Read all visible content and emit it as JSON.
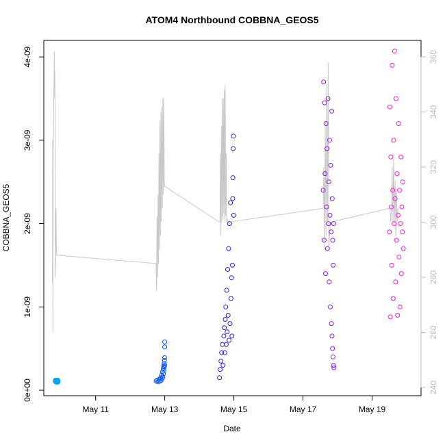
{
  "chart_data": {
    "type": "scatter",
    "title": "ATOM4 Northbound COBBNA_GEOS5",
    "xlabel": "Date",
    "ylabel": "COBBNA_GEOS5",
    "x_ticks": [
      "May 11",
      "May 13",
      "May 15",
      "May 17",
      "May 19"
    ],
    "y_ticks": [
      "0e+00",
      "1e-09",
      "2e-09",
      "3e-09",
      "4e-09"
    ],
    "y_right_ticks": [
      "240",
      "260",
      "280",
      "300",
      "320",
      "340",
      "360"
    ],
    "xlim": [
      "2016-05-09 12:00",
      "2016-05-20 10:00"
    ],
    "ylim": [
      0,
      4.1e-09
    ],
    "y_right_lim": [
      239,
      363
    ],
    "grid": false,
    "legend": "none",
    "colors": {
      "line": "#c8c8c8",
      "axis": "#000000",
      "right_axis": "#bdbdbd",
      "flight_1": "#0ea5f0",
      "flight_2": "#0050ff",
      "flight_3": "#2a1fe6",
      "flight_4": "#8a1ae8",
      "flight_5": "#ff18d8"
    },
    "series": [
      {
        "marker": "circle-open",
        "color": "#0ea5f0",
        "x": [
          "2016-05-09 20:00",
          "2016-05-09 20:06",
          "2016-05-09 20:11",
          "2016-05-09 20:17",
          "2016-05-09 20:22",
          "2016-05-09 20:28",
          "2016-05-09 20:34",
          "2016-05-09 20:39",
          "2016-05-09 20:45",
          "2016-05-09 20:50",
          "2016-05-09 20:56",
          "2016-05-09 21:02",
          "2016-05-09 21:07",
          "2016-05-09 21:13",
          "2016-05-09 21:18",
          "2016-05-09 21:24",
          "2016-05-09 21:30",
          "2016-05-09 21:35",
          "2016-05-09 21:41",
          "2016-05-09 21:46",
          "2016-05-09 21:52",
          "2016-05-09 21:58"
        ],
        "y": [
          1.1e-10,
          1.2e-10,
          1e-10,
          1.15e-10,
          1.05e-10,
          1.1e-10,
          1.2e-10,
          1e-10,
          9.5e-11,
          1.1e-10,
          1.15e-10,
          1.05e-10,
          1.2e-10,
          1.1e-10,
          1e-10,
          1.15e-10,
          9.5e-11,
          1.1e-10,
          1.2e-10,
          1.05e-10,
          1.1e-10,
          1e-10
        ]
      },
      {
        "marker": "circle-open",
        "color": "#0050ff",
        "x": [
          "2016-05-12 18:00",
          "2016-05-12 18:40",
          "2016-05-12 19:20",
          "2016-05-12 20:00",
          "2016-05-12 20:40",
          "2016-05-12 21:10",
          "2016-05-12 21:30",
          "2016-05-12 21:50",
          "2016-05-12 22:10",
          "2016-05-12 22:25",
          "2016-05-12 22:40",
          "2016-05-12 22:55",
          "2016-05-12 23:05",
          "2016-05-12 23:15",
          "2016-05-12 23:25",
          "2016-05-12 23:35",
          "2016-05-12 23:42",
          "2016-05-12 23:48",
          "2016-05-12 23:52",
          "2016-05-12 23:56",
          "2016-05-12 23:58",
          "2016-05-12 23:59"
        ],
        "y": [
          1.1e-10,
          1.2e-10,
          1e-10,
          1.3e-10,
          1.1e-10,
          1.5e-10,
          1.2e-10,
          1.8e-10,
          1.4e-10,
          2.2e-10,
          1.6e-10,
          2.6e-10,
          2e-10,
          2.9e-10,
          2.4e-10,
          3.2e-10,
          2.8e-10,
          3.6e-10,
          3e-10,
          3.9e-10,
          5.2e-10,
          5.8e-10
        ]
      },
      {
        "marker": "circle-open",
        "color": "#2a1fe6",
        "x": [
          "2016-05-14 14:00",
          "2016-05-14 14:30",
          "2016-05-14 15:00",
          "2016-05-14 15:30",
          "2016-05-14 16:00",
          "2016-05-14 16:30",
          "2016-05-14 17:00",
          "2016-05-14 17:20",
          "2016-05-14 17:40",
          "2016-05-14 18:00",
          "2016-05-14 18:20",
          "2016-05-14 18:40",
          "2016-05-14 19:00",
          "2016-05-14 19:20",
          "2016-05-14 19:40",
          "2016-05-14 20:00",
          "2016-05-14 20:20",
          "2016-05-14 20:40",
          "2016-05-14 21:00",
          "2016-05-14 21:20",
          "2016-05-14 21:40",
          "2016-05-14 22:00",
          "2016-05-14 22:20",
          "2016-05-14 22:40",
          "2016-05-14 23:00",
          "2016-05-14 23:10",
          "2016-05-14 23:20",
          "2016-05-14 23:30",
          "2016-05-14 23:40",
          "2016-05-14 23:50"
        ],
        "y": [
          1.5e-10,
          2.5e-10,
          3.5e-10,
          4.5e-10,
          5.5e-10,
          3e-10,
          6.5e-10,
          7.5e-10,
          4.5e-10,
          8.5e-10,
          1e-09,
          5.5e-10,
          1.2e-09,
          7e-10,
          1.45e-09,
          9e-10,
          1.7e-09,
          6e-10,
          2e-09,
          8e-10,
          2.25e-09,
          1.1e-09,
          1.35e-09,
          6.5e-10,
          1.5e-09,
          2.3e-09,
          2.55e-09,
          2.9e-09,
          3.05e-09,
          2.1e-09
        ]
      },
      {
        "marker": "circle-open",
        "color": "#8a1ae8",
        "x": [
          "2016-05-17 14:00",
          "2016-05-17 14:20",
          "2016-05-17 14:40",
          "2016-05-17 15:00",
          "2016-05-17 15:20",
          "2016-05-17 15:40",
          "2016-05-17 16:00",
          "2016-05-17 16:20",
          "2016-05-17 16:40",
          "2016-05-17 17:00",
          "2016-05-17 17:20",
          "2016-05-17 17:40",
          "2016-05-17 18:00",
          "2016-05-17 18:15",
          "2016-05-17 18:30",
          "2016-05-17 18:45",
          "2016-05-17 19:00",
          "2016-05-17 19:15",
          "2016-05-17 19:30",
          "2016-05-17 19:45",
          "2016-05-17 20:00",
          "2016-05-17 20:10",
          "2016-05-17 20:20",
          "2016-05-17 20:30",
          "2016-05-17 20:40",
          "2016-05-17 20:50",
          "2016-05-17 21:00",
          "2016-05-17 21:10",
          "2016-05-17 21:20",
          "2016-05-17 21:30"
        ],
        "y": [
          2.4e-09,
          3.7e-09,
          1.8e-09,
          3.45e-09,
          2.6e-09,
          1.4e-09,
          3.2e-09,
          2.2e-09,
          2.9e-09,
          1.7e-09,
          3.5e-09,
          2e-09,
          2.5e-09,
          1.3e-09,
          3e-09,
          2.1e-09,
          1e-09,
          2.7e-09,
          1.9e-09,
          8e-10,
          3.35e-09,
          6.5e-10,
          2.3e-09,
          5e-10,
          1.8e-09,
          4e-10,
          1.5e-09,
          3e-10,
          2e-09,
          2.7e-10
        ]
      },
      {
        "marker": "circle-open",
        "color": "#ff18d8",
        "x": [
          "2016-05-19 12:00",
          "2016-05-19 12:20",
          "2016-05-19 12:40",
          "2016-05-19 13:00",
          "2016-05-19 13:20",
          "2016-05-19 13:40",
          "2016-05-19 14:00",
          "2016-05-19 14:20",
          "2016-05-19 14:40",
          "2016-05-19 15:00",
          "2016-05-19 15:20",
          "2016-05-19 15:40",
          "2016-05-19 16:00",
          "2016-05-19 16:20",
          "2016-05-19 16:40",
          "2016-05-19 17:00",
          "2016-05-19 17:20",
          "2016-05-19 17:40",
          "2016-05-19 18:00",
          "2016-05-19 18:20",
          "2016-05-19 18:40",
          "2016-05-19 19:00",
          "2016-05-19 19:20",
          "2016-05-19 19:40",
          "2016-05-19 20:00",
          "2016-05-19 20:20",
          "2016-05-19 20:40",
          "2016-05-19 21:00",
          "2016-05-19 21:20",
          "2016-05-19 21:40"
        ],
        "y": [
          1.9e-09,
          3.4e-09,
          8.8e-10,
          2.8e-09,
          2.2e-09,
          1.5e-09,
          3.9e-09,
          2.4e-09,
          1.1e-09,
          3e-09,
          2e-09,
          4.07e-09,
          2.3e-09,
          1.3e-09,
          3.5e-09,
          1.8e-09,
          2.6e-09,
          9e-10,
          2.1e-09,
          3.2e-09,
          1.6e-09,
          2.4e-09,
          1e-09,
          2e-09,
          2.8e-09,
          1.4e-09,
          2.2e-09,
          1.9e-09,
          2.5e-09,
          1.7e-09
        ]
      }
    ],
    "secondary_series": {
      "type": "line",
      "color": "#c8c8c8",
      "axis": "right",
      "x": [
        "2016-05-09 18:00",
        "2016-05-09 18:10",
        "2016-05-09 18:20",
        "2016-05-09 18:30",
        "2016-05-09 18:40",
        "2016-05-09 18:50",
        "2016-05-09 19:00",
        "2016-05-09 19:10",
        "2016-05-09 19:20",
        "2016-05-09 19:30",
        "2016-05-09 19:40",
        "2016-05-09 19:50",
        "2016-05-09 20:00",
        "2016-05-09 20:10",
        "2016-05-09 20:20",
        "2016-05-09 20:30",
        "2016-05-09 20:40",
        "2016-05-09 20:50",
        "2016-05-09 21:00",
        "2016-05-12 18:00",
        "2016-05-12 18:20",
        "2016-05-12 18:40",
        "2016-05-12 19:00",
        "2016-05-12 19:20",
        "2016-05-12 19:40",
        "2016-05-12 20:00",
        "2016-05-12 20:20",
        "2016-05-12 20:40",
        "2016-05-12 21:00",
        "2016-05-12 21:20",
        "2016-05-12 21:40",
        "2016-05-12 22:00",
        "2016-05-12 22:20",
        "2016-05-12 22:40",
        "2016-05-12 23:00",
        "2016-05-12 23:20",
        "2016-05-12 23:40",
        "2016-05-12 23:59",
        "2016-05-14 14:00",
        "2016-05-14 14:20",
        "2016-05-14 14:40",
        "2016-05-14 15:00",
        "2016-05-14 15:20",
        "2016-05-14 15:40",
        "2016-05-14 16:00",
        "2016-05-14 16:20",
        "2016-05-14 16:40",
        "2016-05-14 17:00",
        "2016-05-14 17:20",
        "2016-05-14 17:40",
        "2016-05-14 18:00",
        "2016-05-14 18:20",
        "2016-05-14 18:40",
        "2016-05-14 19:00",
        "2016-05-14 19:30",
        "2016-05-14 20:00",
        "2016-05-17 14:00",
        "2016-05-17 14:30",
        "2016-05-17 15:00",
        "2016-05-17 15:30",
        "2016-05-17 16:00",
        "2016-05-17 16:30",
        "2016-05-17 17:00",
        "2016-05-17 17:30",
        "2016-05-17 18:00",
        "2016-05-17 19:00",
        "2016-05-19 12:00",
        "2016-05-19 12:30",
        "2016-05-19 13:00",
        "2016-05-19 13:30",
        "2016-05-19 14:00",
        "2016-05-19 14:30",
        "2016-05-19 15:00",
        "2016-05-19 15:30",
        "2016-05-19 16:00",
        "2016-05-19 16:30",
        "2016-05-19 17:00",
        "2016-05-19 17:30",
        "2016-05-19 18:00"
      ],
      "y": [
        278,
        330,
        260,
        325,
        332,
        340,
        348,
        355,
        362,
        345,
        355,
        340,
        280,
        285,
        300,
        305,
        295,
        290,
        288,
        285,
        275,
        302,
        280,
        310,
        285,
        325,
        290,
        337,
        295,
        340,
        300,
        342,
        305,
        345,
        310,
        345,
        315,
        313,
        300,
        300,
        325,
        295,
        335,
        300,
        345,
        302,
        345,
        303,
        348,
        300,
        350,
        302,
        325,
        300,
        301,
        300,
        305,
        320,
        290,
        335,
        295,
        350,
        300,
        358,
        290,
        300,
        305,
        305,
        300,
        305,
        320,
        300,
        325,
        300,
        315,
        295,
        312,
        300,
        305
      ]
    }
  }
}
